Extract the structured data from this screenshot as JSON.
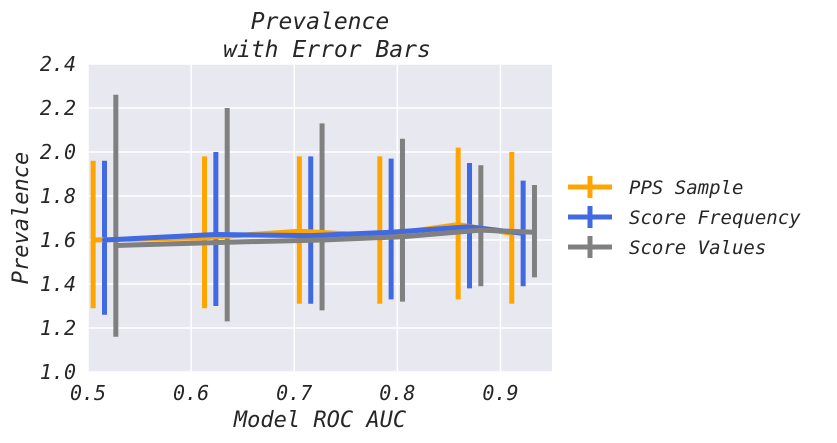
{
  "chart_data": {
    "type": "line",
    "title_lines": [
      "Prevalence",
      "with Error Bars"
    ],
    "xlabel": "Model ROC AUC",
    "ylabel": "Prevalence",
    "xlim": [
      0.5,
      0.95
    ],
    "ylim": [
      1.0,
      2.4
    ],
    "x_ticks": [
      0.5,
      0.6,
      0.7,
      0.8,
      0.9
    ],
    "x_tick_labels": [
      "0.5",
      "0.6",
      "0.7",
      "0.8",
      "0.9"
    ],
    "y_ticks": [
      1.0,
      1.2,
      1.4,
      1.6,
      1.8,
      2.0,
      2.2,
      2.4
    ],
    "y_tick_labels": [
      "1.0",
      "1.2",
      "1.4",
      "1.6",
      "1.8",
      "2.0",
      "2.2",
      "2.4"
    ],
    "grid": true,
    "legend_position": "right, outside",
    "background_color": "#e8e8f1",
    "series": [
      {
        "name": "PPS Sample",
        "color": "#ffa500",
        "x": [
          0.505,
          0.613,
          0.705,
          0.783,
          0.859,
          0.911
        ],
        "y": [
          1.6,
          1.61,
          1.64,
          1.62,
          1.67,
          1.63
        ],
        "err_low": [
          1.29,
          1.29,
          1.31,
          1.31,
          1.33,
          1.31
        ],
        "err_high": [
          1.96,
          1.98,
          1.98,
          1.98,
          2.02,
          2.0
        ]
      },
      {
        "name": "Score Frequency",
        "color": "#4169e1",
        "x": [
          0.516,
          0.624,
          0.716,
          0.794,
          0.87,
          0.922
        ],
        "y": [
          1.6,
          1.625,
          1.62,
          1.635,
          1.66,
          1.63
        ],
        "err_low": [
          1.26,
          1.3,
          1.31,
          1.33,
          1.38,
          1.39
        ],
        "err_high": [
          1.96,
          2.0,
          1.98,
          1.97,
          1.95,
          1.87
        ]
      },
      {
        "name": "Score Values",
        "color": "#808080",
        "x": [
          0.527,
          0.635,
          0.727,
          0.805,
          0.881,
          0.933
        ],
        "y": [
          1.575,
          1.59,
          1.6,
          1.615,
          1.645,
          1.635
        ],
        "err_low": [
          1.16,
          1.23,
          1.28,
          1.32,
          1.39,
          1.43
        ],
        "err_high": [
          2.26,
          2.2,
          2.13,
          2.06,
          1.94,
          1.85
        ]
      }
    ]
  }
}
